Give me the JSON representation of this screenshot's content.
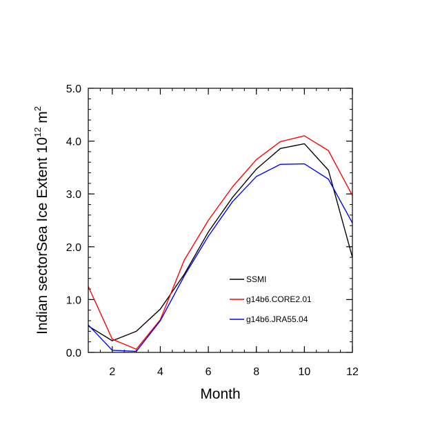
{
  "chart_data": {
    "type": "line",
    "title": "",
    "xlabel": "Month",
    "ylabel": {
      "prefix": "Indian sectorSea Ice Extent 10",
      "exponent": "12",
      "unit": " m",
      "unit_exponent": "2"
    },
    "xlim": [
      1,
      12
    ],
    "ylim": [
      0,
      5
    ],
    "x_ticks": [
      2,
      4,
      6,
      8,
      10,
      12
    ],
    "y_ticks": [
      0,
      1,
      2,
      3,
      4,
      5
    ],
    "y_tick_labels": [
      "0.0",
      "1.0",
      "2.0",
      "3.0",
      "4.0",
      "5.0"
    ],
    "grid": false,
    "legend_position": "lower-right",
    "x": [
      1,
      2,
      3,
      4,
      5,
      6,
      7,
      8,
      9,
      10,
      11,
      12
    ],
    "series": [
      {
        "name": "SSMI",
        "color": "#000000",
        "values": [
          0.5,
          0.22,
          0.4,
          0.82,
          1.48,
          2.28,
          2.93,
          3.47,
          3.86,
          3.95,
          3.45,
          1.8
        ]
      },
      {
        "name": "g14b6.CORE2.01",
        "color": "#ff0000",
        "values": [
          1.25,
          0.25,
          0.06,
          0.62,
          1.75,
          2.5,
          3.13,
          3.65,
          3.99,
          4.1,
          3.82,
          2.97
        ]
      },
      {
        "name": "g14b6.JRA55.04",
        "color": "#0000ff",
        "values": [
          0.52,
          0.04,
          0.02,
          0.6,
          1.45,
          2.2,
          2.85,
          3.33,
          3.56,
          3.57,
          3.28,
          2.45
        ]
      }
    ]
  }
}
